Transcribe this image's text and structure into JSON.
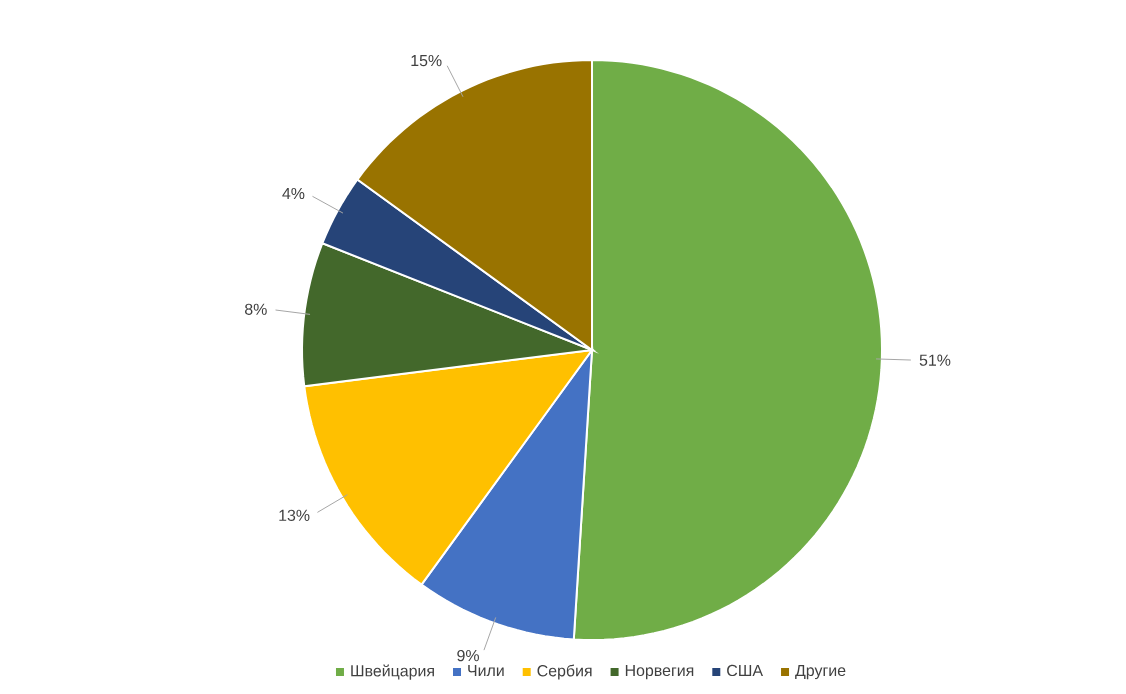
{
  "chart_data": {
    "type": "pie",
    "categories": [
      "Швейцария",
      "Чили",
      "Сербия",
      "Норвегия",
      "США",
      "Другие"
    ],
    "values": [
      51,
      9,
      13,
      8,
      4,
      15
    ],
    "value_labels": [
      "51%",
      "9%",
      "13%",
      "8%",
      "4%",
      "15%"
    ],
    "colors": [
      "#70ad47",
      "#4472c4",
      "#ffc000",
      "#43682b",
      "#264478",
      "#997300"
    ],
    "legend": "bottom"
  }
}
